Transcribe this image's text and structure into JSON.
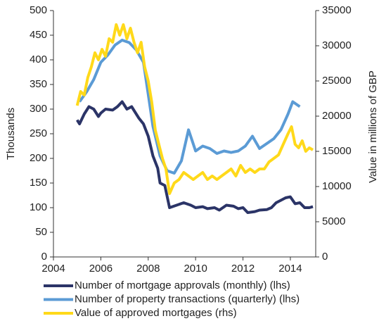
{
  "chart_data": {
    "type": "line",
    "y_label": "Thousands",
    "y2_label": "Value in millions of GBP",
    "xlim": [
      2004,
      2015.07
    ],
    "xticks": [
      2004,
      2006,
      2008,
      2010,
      2012,
      2014
    ],
    "ylim": [
      0,
      500
    ],
    "yticks": [
      0,
      50,
      100,
      150,
      200,
      250,
      300,
      350,
      400,
      450,
      500
    ],
    "y2lim": [
      0,
      35000
    ],
    "y2ticks": [
      0,
      5000,
      10000,
      15000,
      20000,
      25000,
      30000,
      35000
    ],
    "legend": "bottom",
    "grid": false,
    "series": [
      {
        "name": "Number of mortgage approvals (monthly) (lhs)",
        "color": "#2b3467",
        "axis": "y",
        "x": [
          2005.0,
          2005.1,
          2005.3,
          2005.5,
          2005.7,
          2005.9,
          2006.0,
          2006.2,
          2006.5,
          2006.7,
          2006.9,
          2007.1,
          2007.3,
          2007.6,
          2007.8,
          2008.0,
          2008.2,
          2008.4,
          2008.5,
          2008.7,
          2008.9,
          2009.2,
          2009.5,
          2009.8,
          2010.0,
          2010.3,
          2010.5,
          2010.8,
          2011.0,
          2011.3,
          2011.6,
          2011.8,
          2012.0,
          2012.2,
          2012.5,
          2012.7,
          2013.0,
          2013.2,
          2013.4,
          2013.6,
          2013.8,
          2014.0,
          2014.2,
          2014.4,
          2014.6,
          2014.8,
          2014.95
        ],
        "values": [
          278,
          270,
          290,
          305,
          300,
          285,
          292,
          300,
          298,
          305,
          315,
          300,
          305,
          282,
          270,
          245,
          205,
          180,
          150,
          145,
          100,
          105,
          110,
          105,
          100,
          102,
          98,
          100,
          95,
          105,
          103,
          98,
          100,
          90,
          92,
          95,
          96,
          100,
          110,
          115,
          120,
          122,
          108,
          110,
          100,
          100,
          102
        ]
      },
      {
        "name": "Number of property transactions (quarterly) (lhs)",
        "color": "#5b9bd5",
        "axis": "y",
        "x": [
          2005.1,
          2005.4,
          2005.7,
          2006.0,
          2006.3,
          2006.6,
          2006.9,
          2007.2,
          2007.5,
          2007.8,
          2008.0,
          2008.2,
          2008.5,
          2008.8,
          2009.1,
          2009.4,
          2009.7,
          2010.0,
          2010.3,
          2010.6,
          2010.9,
          2011.2,
          2011.5,
          2011.8,
          2012.1,
          2012.4,
          2012.7,
          2013.0,
          2013.3,
          2013.6,
          2013.9,
          2014.1,
          2014.4
        ],
        "values": [
          315,
          335,
          360,
          395,
          410,
          430,
          440,
          435,
          420,
          395,
          330,
          265,
          205,
          175,
          170,
          195,
          258,
          215,
          225,
          220,
          210,
          215,
          212,
          215,
          225,
          245,
          220,
          230,
          240,
          258,
          290,
          315,
          305
        ]
      },
      {
        "name": "Value of approved mortgages (rhs)",
        "color": "#ffd91a",
        "axis": "y2",
        "x": [
          2005.0,
          2005.15,
          2005.3,
          2005.45,
          2005.6,
          2005.75,
          2005.9,
          2006.05,
          2006.2,
          2006.35,
          2006.5,
          2006.65,
          2006.8,
          2006.95,
          2007.1,
          2007.25,
          2007.4,
          2007.55,
          2007.7,
          2007.85,
          2008.0,
          2008.15,
          2008.3,
          2008.45,
          2008.6,
          2008.75,
          2008.9,
          2009.1,
          2009.3,
          2009.5,
          2009.7,
          2009.9,
          2010.1,
          2010.3,
          2010.5,
          2010.7,
          2010.9,
          2011.1,
          2011.3,
          2011.5,
          2011.7,
          2011.9,
          2012.1,
          2012.3,
          2012.5,
          2012.7,
          2012.9,
          2013.1,
          2013.3,
          2013.5,
          2013.7,
          2013.9,
          2014.05,
          2014.2,
          2014.35,
          2014.5,
          2014.65,
          2014.8,
          2014.95
        ],
        "values": [
          21500,
          23500,
          23000,
          25500,
          27000,
          29000,
          28000,
          29500,
          28500,
          31000,
          30500,
          33000,
          31500,
          33000,
          31000,
          32500,
          30500,
          29000,
          30500,
          27000,
          25000,
          22000,
          18000,
          16000,
          14000,
          12500,
          9000,
          10500,
          11000,
          12000,
          11500,
          11000,
          11500,
          12000,
          11000,
          11500,
          11000,
          11500,
          12000,
          12500,
          11500,
          13000,
          12000,
          12500,
          12000,
          12500,
          12500,
          13500,
          14000,
          14500,
          16000,
          17500,
          18500,
          16000,
          15500,
          16500,
          15000,
          15500,
          15200
        ]
      }
    ]
  }
}
